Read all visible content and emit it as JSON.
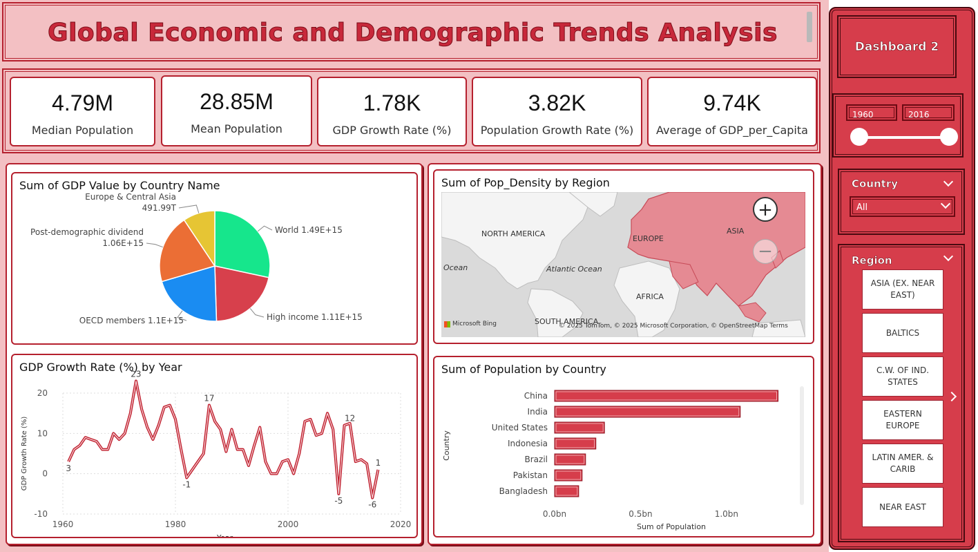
{
  "header": {
    "title": "Global Economic and Demographic Trends Analysis"
  },
  "kpis": [
    {
      "value": "4.79M",
      "label": "Median Population"
    },
    {
      "value": "28.85M",
      "label": "Mean Population"
    },
    {
      "value": "1.78K",
      "label": "GDP Growth Rate (%)"
    },
    {
      "value": "3.82K",
      "label": "Population Growth Rate (%)"
    },
    {
      "value": "9.74K",
      "label": "Average of GDP_per_Capita"
    }
  ],
  "sidebar": {
    "dashboard_button": "Dashboard 2",
    "year_slider": {
      "start": "1960",
      "end": "2016",
      "start_fraction": 0.0,
      "end_fraction": 1.0
    },
    "country_filter": {
      "label": "Country",
      "selected": "All"
    },
    "region_filter": {
      "label": "Region",
      "options": [
        "ASIA (EX. NEAR EAST)",
        "BALTICS",
        "C.W. OF IND. STATES",
        "EASTERN EUROPE",
        "LATIN AMER. & CARIB",
        "NEAR EAST"
      ]
    }
  },
  "map": {
    "title": "Sum of Pop_Density by Region",
    "labels": {
      "north_america": "NORTH AMERICA",
      "europe": "EUROPE",
      "asia": "ASIA",
      "africa": "AFRICA",
      "south_america": "SOUTH AMERICA",
      "atlantic": "Atlantic Ocean",
      "ocean": "Ocean"
    },
    "attribution": "© 2025 TomTom, © 2025 Microsoft Corporation, © OpenStreetMap Terms",
    "bing": "Microsoft Bing",
    "zoom_in": "+",
    "zoom_out": "−"
  },
  "chart_data": [
    {
      "type": "pie",
      "title": "Sum of GDP Value by Country Name",
      "slices": [
        {
          "name": "World",
          "label": "World 1.49E+15",
          "value": 1490000000000000.0,
          "color": "#16e68c"
        },
        {
          "name": "High income",
          "label": "High income 1.11E+15",
          "value": 1110000000000000.0,
          "color": "#d7404c"
        },
        {
          "name": "OECD members",
          "label": "OECD members 1.1E+15",
          "value": 1100000000000000.0,
          "color": "#1a8cf2"
        },
        {
          "name": "Post-demographic dividend",
          "label": "Post-demographic dividend 1.06E+15",
          "label_lines": [
            "Post-demographic dividend",
            "1.06E+15"
          ],
          "value": 1060000000000000.0,
          "color": "#eb6e35"
        },
        {
          "name": "Europe & Central Asia",
          "label": "Europe & Central Asia 491.99T",
          "label_lines": [
            "Europe & Central Asia",
            "491.99T"
          ],
          "value": 491990000000000.0,
          "color": "#e6c534"
        }
      ]
    },
    {
      "type": "line",
      "title": "GDP Growth Rate (%) by Year",
      "xlabel": "Year",
      "ylabel": "GDP Growth Rate (%)",
      "xlim": [
        1960,
        2020
      ],
      "ylim": [
        -10,
        20
      ],
      "xticks": [
        1960,
        1980,
        2000,
        2020
      ],
      "yticks": [
        -10,
        0,
        10,
        20
      ],
      "color": "#c0202f",
      "x": [
        1961,
        1962,
        1963,
        1964,
        1965,
        1966,
        1967,
        1968,
        1969,
        1970,
        1971,
        1972,
        1973,
        1974,
        1975,
        1976,
        1977,
        1978,
        1979,
        1980,
        1981,
        1982,
        1983,
        1984,
        1985,
        1986,
        1987,
        1988,
        1989,
        1990,
        1991,
        1992,
        1993,
        1994,
        1995,
        1996,
        1997,
        1998,
        1999,
        2000,
        2001,
        2002,
        2003,
        2004,
        2005,
        2006,
        2007,
        2008,
        2009,
        2010,
        2011,
        2012,
        2013,
        2014,
        2015,
        2016
      ],
      "y": [
        3,
        6,
        7,
        9,
        8.5,
        8,
        6,
        6,
        10,
        8.5,
        10,
        15,
        23,
        16,
        11.5,
        8.5,
        12,
        16.5,
        17,
        13.5,
        6,
        -1,
        1,
        3,
        5,
        17,
        13,
        11,
        5.5,
        11,
        6,
        6,
        2,
        7,
        11.5,
        3,
        0,
        0,
        3,
        3.5,
        0,
        5,
        13,
        13.5,
        9.5,
        10,
        15,
        11,
        -5,
        12,
        12.5,
        3,
        3.5,
        2.5,
        -6,
        1
      ],
      "point_labels": [
        {
          "x": 1961,
          "y": 3,
          "text": "3"
        },
        {
          "x": 1973,
          "y": 23,
          "text": "23"
        },
        {
          "x": 1982,
          "y": -1,
          "text": "-1"
        },
        {
          "x": 1986,
          "y": 17,
          "text": "17"
        },
        {
          "x": 2009,
          "y": -5,
          "text": "-5"
        },
        {
          "x": 2011,
          "y": 12,
          "text": "12"
        },
        {
          "x": 2015,
          "y": -6,
          "text": "-6"
        },
        {
          "x": 2016,
          "y": 1,
          "text": "1"
        }
      ]
    },
    {
      "type": "bar",
      "orientation": "horizontal",
      "title": "Sum of Population by Country",
      "xlabel": "Sum of Population",
      "ylabel": "Country",
      "categories": [
        "China",
        "India",
        "United States",
        "Indonesia",
        "Brazil",
        "Pakistan",
        "Bangladesh"
      ],
      "values": [
        1.3,
        1.08,
        0.29,
        0.24,
        0.18,
        0.16,
        0.14
      ],
      "unit": "bn",
      "xlim": [
        0,
        1.35
      ],
      "xticks": [
        0.0,
        0.5,
        1.0
      ],
      "xtick_labels": [
        "0.0bn",
        "0.5bn",
        "1.0bn"
      ],
      "color": "#d63d4b"
    }
  ]
}
